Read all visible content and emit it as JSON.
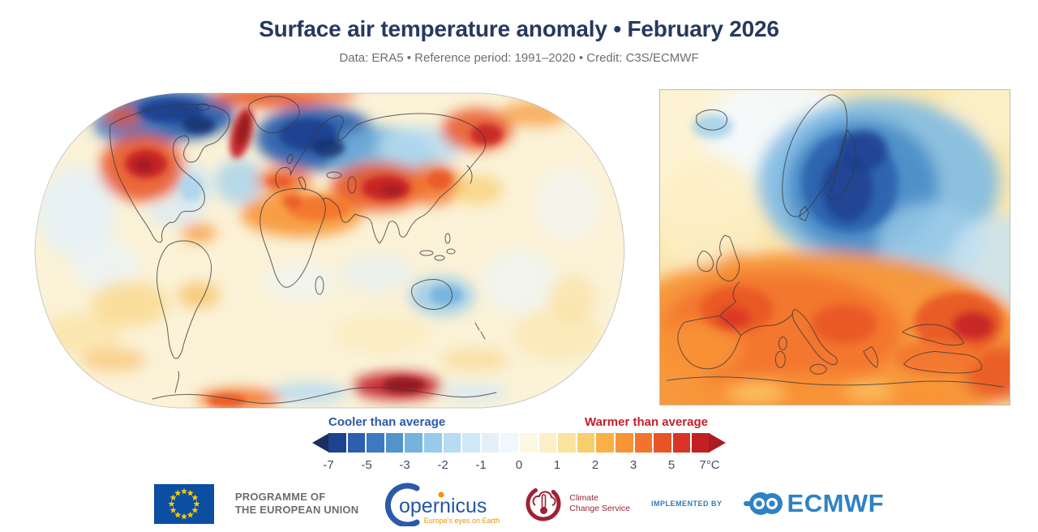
{
  "header": {
    "title": "Surface air temperature anomaly • February 2026",
    "subtitle": "Data: ERA5 • Reference period: 1991–2020 • Credit: C3S/ECMWF"
  },
  "legend": {
    "cool_label": "Cooler than average",
    "warm_label": "Warmer than average",
    "cool_color": "#2B5AA8",
    "warm_color": "#C2202B",
    "left_arrow_color": "#1A2F5E",
    "right_arrow_color": "#AC1A22",
    "segment_colors": [
      "#1E4191",
      "#2C5FAD",
      "#3E78BE",
      "#5193CB",
      "#74B4DC",
      "#97CBE9",
      "#B6DCF1",
      "#D1E8F6",
      "#E3F0FA",
      "#F1F8FD",
      "#FDF8E3",
      "#FCF0C6",
      "#FBE3A0",
      "#FACD6C",
      "#F9B146",
      "#F79435",
      "#F3732E",
      "#E85425",
      "#D93425",
      "#C32026"
    ],
    "tick_labels": [
      "-7",
      "-5",
      "-3",
      "-2",
      "-1",
      "0",
      "1",
      "2",
      "3",
      "5",
      "7°C"
    ],
    "tick_color": "#3D5068"
  },
  "footer": {
    "programme_line1": "PROGRAMME OF",
    "programme_line2": "THE EUROPEAN UNION",
    "copernicus_text": "opernicus",
    "copernicus_tagline": "Europe's eyes on Earth",
    "c3s_line1": "Climate",
    "c3s_line2": "Change Service",
    "implemented_by": "IMPLEMENTED BY",
    "ecmwf": "ECMWF",
    "icons": [
      "eu-flag",
      "copernicus-logo",
      "c3s-logo",
      "ecmwf-logo"
    ]
  },
  "chart_data": {
    "type": "heatmap",
    "title": "Surface air temperature anomaly • February 2026",
    "units": "°C",
    "dataset": "ERA5",
    "reference_period": "1991–2020",
    "credit": "C3S/ECMWF",
    "panels": [
      "Global map (Robinson projection)",
      "Europe map"
    ],
    "colorbar_ticks": [
      -7,
      -5,
      -3,
      -2,
      -1,
      0,
      1,
      2,
      3,
      5,
      7
    ],
    "colorbar_colors": [
      "#1E4191",
      "#2C5FAD",
      "#3E78BE",
      "#5193CB",
      "#74B4DC",
      "#97CBE9",
      "#B6DCF1",
      "#D1E8F6",
      "#E3F0FA",
      "#F1F8FD",
      "#FDF8E3",
      "#FCF0C6",
      "#FBE3A0",
      "#FACD6C",
      "#F9B146",
      "#F79435",
      "#F3732E",
      "#E85425",
      "#D93425",
      "#C32026"
    ],
    "cooler_than_average_regions": [
      "Arctic Canada",
      "Scandinavia and Baltic",
      "Northwest Russia",
      "North Atlantic (mild)",
      "Australia (mild)"
    ],
    "warmer_than_average_regions": [
      "Western North America",
      "Baffin Bay / west Greenland",
      "North Africa and Middle East",
      "Central Asia (strong)",
      "East Asia",
      "Central and southern Europe",
      "East Antarctica (strong)"
    ]
  }
}
